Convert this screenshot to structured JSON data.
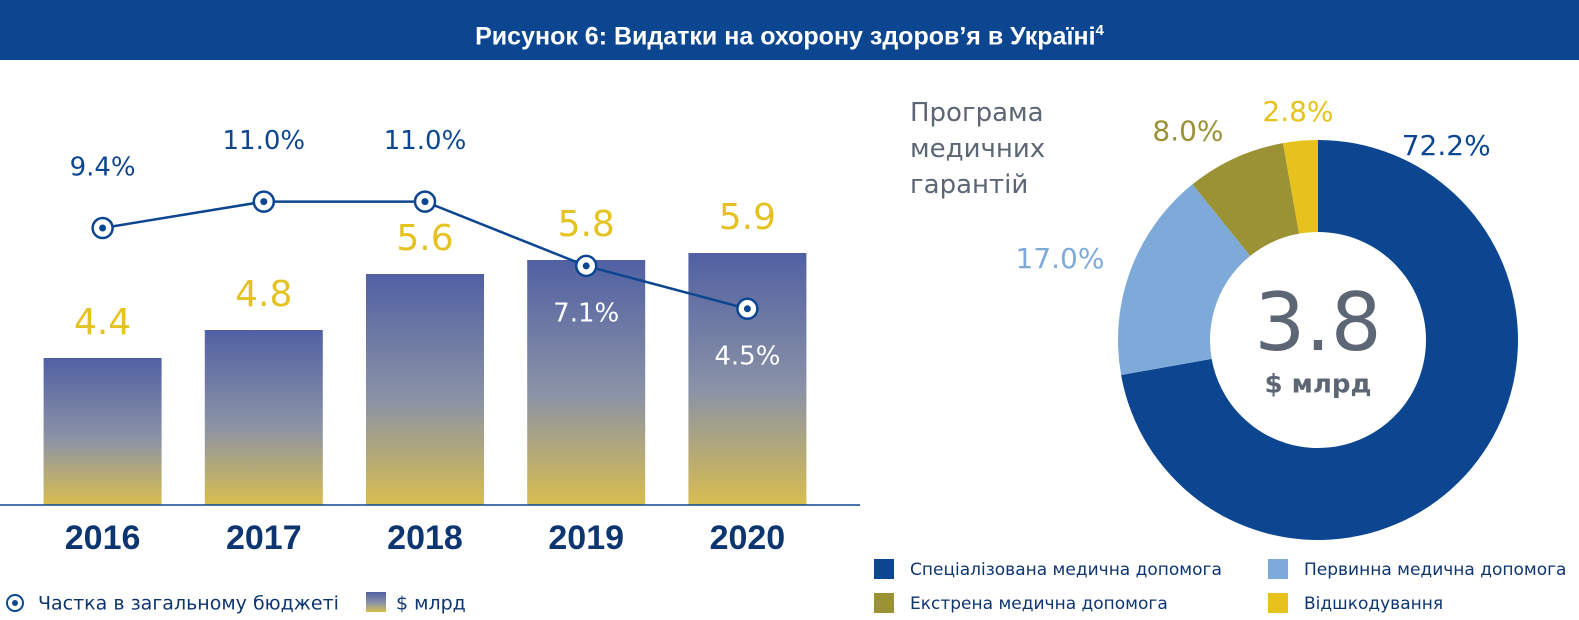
{
  "header": {
    "title": "Рисунок 6: Видатки на охорону здоров’я в Україні",
    "footnote_mark": "4"
  },
  "chart_data": [
    {
      "type": "bar",
      "categories": [
        "2016",
        "2017",
        "2018",
        "2019",
        "2020"
      ],
      "ylim": [
        2.3,
        8.0
      ],
      "y2lim": [
        -7.4,
        16.8
      ],
      "series": [
        {
          "name": "Частка в загальному бюджеті",
          "type": "line",
          "axis": "y2",
          "color": "#0d4690",
          "values": [
            9.4,
            11.0,
            11.0,
            7.1,
            4.5
          ],
          "value_labels": [
            "9.4%",
            "11.0%",
            "11.0%",
            "7.1%",
            "4.5%"
          ]
        },
        {
          "name": "$ млрд",
          "type": "bar",
          "color": "#e6c220",
          "values": [
            4.4,
            4.8,
            5.6,
            5.8,
            5.9
          ]
        }
      ]
    },
    {
      "type": "pie",
      "title": "Програма медичних гарантій",
      "center_value": "3.8",
      "center_label": "$ млрд",
      "categories": [
        "Спеціалізована медична допомога",
        "Первинна медична допомога",
        "Екстрена медична допомога",
        "Відшкодування"
      ],
      "values": [
        72.2,
        17.0,
        8.0,
        2.8
      ],
      "value_labels": [
        "72.2%",
        "17.0%",
        "8.0%",
        "2.8%"
      ],
      "colors": [
        "#0d4690",
        "#7eaad9",
        "#9b9236",
        "#e8c21c"
      ]
    }
  ]
}
